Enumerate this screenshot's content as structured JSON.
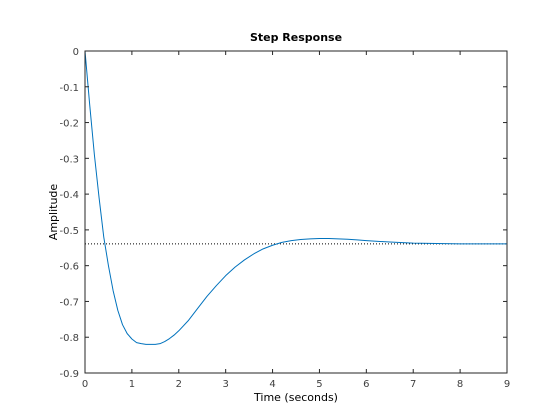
{
  "chart_data": {
    "type": "line",
    "title": "Step Response",
    "xlabel": "Time (seconds)",
    "ylabel": "Amplitude",
    "xlim": [
      0,
      9
    ],
    "ylim": [
      -0.9,
      0
    ],
    "xticks": [
      0,
      1,
      2,
      3,
      4,
      5,
      6,
      7,
      8,
      9
    ],
    "yticks": [
      0,
      -0.1,
      -0.2,
      -0.3,
      -0.4,
      -0.5,
      -0.6,
      -0.7,
      -0.8,
      -0.9
    ],
    "xtick_labels": [
      "0",
      "1",
      "2",
      "3",
      "4",
      "5",
      "6",
      "7",
      "8",
      "9"
    ],
    "ytick_labels": [
      "0",
      "-0.1",
      "-0.2",
      "-0.3",
      "-0.4",
      "-0.5",
      "-0.6",
      "-0.7",
      "-0.8",
      "-0.9"
    ],
    "grid": false,
    "series": [
      {
        "color": "#0072BD",
        "x": [
          0,
          0.1,
          0.2,
          0.3,
          0.4,
          0.5,
          0.6,
          0.7,
          0.8,
          0.9,
          1.0,
          1.1,
          1.2,
          1.3,
          1.4,
          1.5,
          1.6,
          1.7,
          1.8,
          1.9,
          2.0,
          2.2,
          2.4,
          2.6,
          2.8,
          3.0,
          3.2,
          3.4,
          3.6,
          3.8,
          4.0,
          4.2,
          4.4,
          4.6,
          4.8,
          5.0,
          5.2,
          5.4,
          5.6,
          5.8,
          6.0,
          6.5,
          7.0,
          7.5,
          8.0,
          8.5,
          9.0
        ],
        "y": [
          0,
          -0.15,
          -0.29,
          -0.41,
          -0.52,
          -0.6,
          -0.67,
          -0.725,
          -0.765,
          -0.79,
          -0.805,
          -0.815,
          -0.818,
          -0.82,
          -0.82,
          -0.82,
          -0.818,
          -0.812,
          -0.804,
          -0.794,
          -0.782,
          -0.754,
          -0.72,
          -0.686,
          -0.656,
          -0.628,
          -0.604,
          -0.584,
          -0.567,
          -0.553,
          -0.543,
          -0.535,
          -0.53,
          -0.527,
          -0.525,
          -0.524,
          -0.524,
          -0.525,
          -0.526,
          -0.528,
          -0.53,
          -0.534,
          -0.537,
          -0.538,
          -0.539,
          -0.539,
          -0.539
        ]
      }
    ],
    "reference_line": {
      "y": -0.539,
      "style": "dotted",
      "color": "#000000"
    }
  }
}
